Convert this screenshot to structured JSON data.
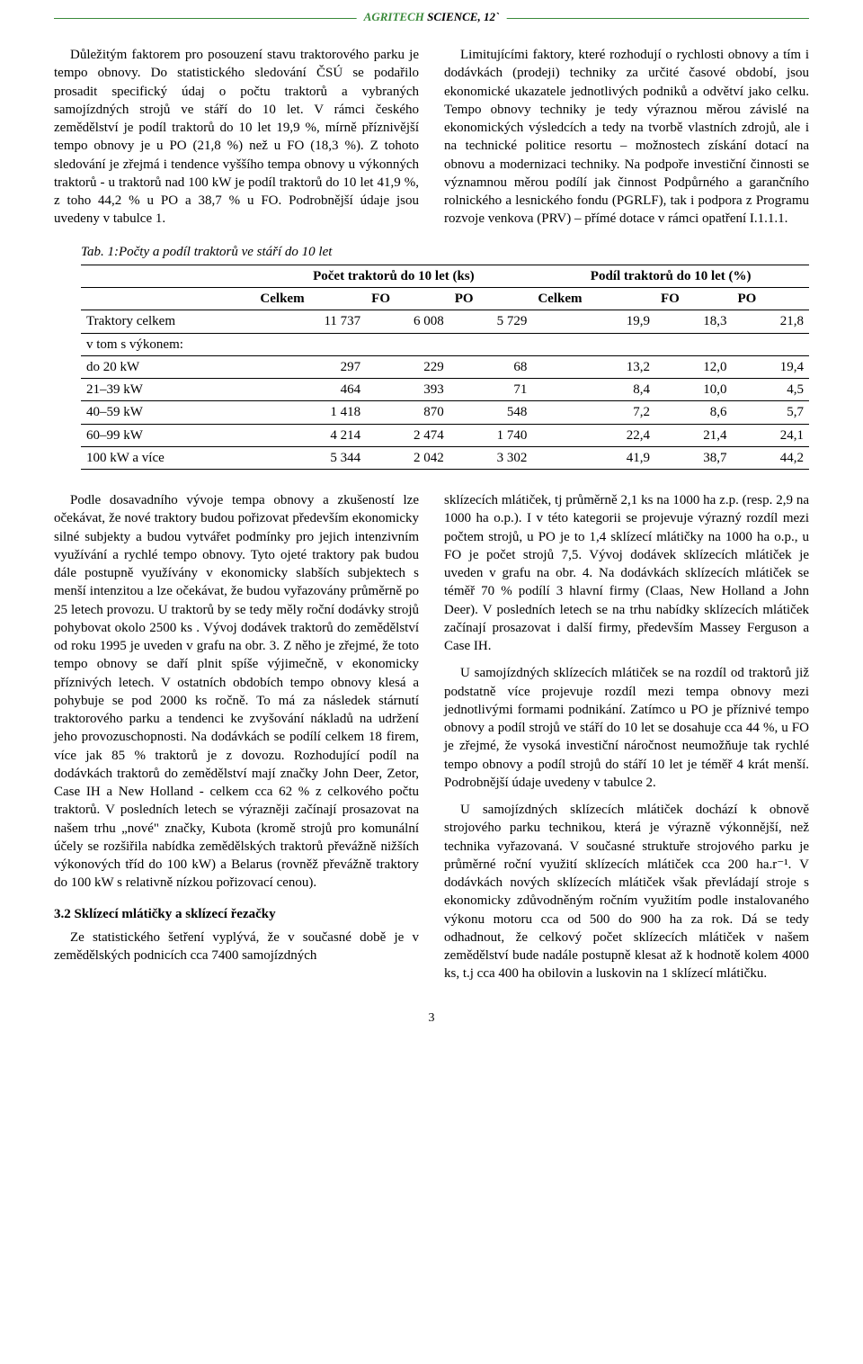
{
  "header": {
    "brand": "AGRITECH",
    "rest": " SCIENCE, 12`"
  },
  "top": {
    "left": "Důležitým faktorem pro posouzení stavu traktorového parku je tempo obnovy. Do statistického sledování ČSÚ se podařilo prosadit specifický údaj o počtu traktorů a vybraných samojízdných strojů ve stáří do 10 let. V rámci českého zemědělství je podíl traktorů do 10 let 19,9 %, mírně příznivější tempo obnovy je u PO (21,8 %) než u FO (18,3 %). Z tohoto sledování je zřejmá i tendence vyššího tempa obnovy u výkonných traktorů - u traktorů nad 100 kW je podíl traktorů do 10 let 41,9 %, z toho 44,2 % u PO a 38,7 % u FO. Podrobnější údaje jsou uvedeny v tabulce 1.",
    "right": "Limitujícími faktory, které rozhodují o rychlosti obnovy a tím i dodávkách (prodeji) techniky za určité časové období, jsou ekonomické ukazatele jednotlivých podniků a odvětví jako celku. Tempo obnovy techniky je tedy výraznou měrou závislé na ekonomických výsledcích a tedy na tvorbě vlastních zdrojů, ale i na technické politice resortu – možnostech získání dotací na obnovu a modernizaci techniky. Na podpoře investiční činnosti se významnou měrou podílí jak činnost Podpůrného a garančního rolnického a lesnického fondu (PGRLF), tak i podpora z Programu rozvoje venkova (PRV) – přímé dotace v rámci opatření I.1.1.1."
  },
  "table": {
    "caption": "Tab. 1:Počty a podíl traktorů ve stáří do 10 let",
    "group1": "Počet traktorů do 10 let (ks)",
    "group2": "Podíl traktorů do 10 let (%)",
    "cols": [
      "",
      "Celkem",
      "FO",
      "PO",
      "Celkem",
      "FO",
      "PO"
    ],
    "rows": [
      [
        "Traktory celkem",
        "11 737",
        "6 008",
        "5 729",
        "19,9",
        "18,3",
        "21,8"
      ],
      [
        "v tom s výkonem:",
        "",
        "",
        "",
        "",
        "",
        ""
      ],
      [
        "do 20 kW",
        "297",
        "229",
        "68",
        "13,2",
        "12,0",
        "19,4"
      ],
      [
        "21–39 kW",
        "464",
        "393",
        "71",
        "8,4",
        "10,0",
        "4,5"
      ],
      [
        "40–59 kW",
        "1 418",
        "870",
        "548",
        "7,2",
        "8,6",
        "5,7"
      ],
      [
        "60–99 kW",
        "4 214",
        "2 474",
        "1 740",
        "22,4",
        "21,4",
        "24,1"
      ],
      [
        "100 kW a více",
        "5 344",
        "2 042",
        "3 302",
        "41,9",
        "38,7",
        "44,2"
      ]
    ]
  },
  "bottom": {
    "left1": "Podle dosavadního vývoje tempa obnovy a zkušeností lze očekávat, že nové traktory budou pořizovat především ekonomicky silné subjekty a budou vytvářet podmínky pro jejich intenzivním využívání a rychlé tempo obnovy. Tyto ojeté traktory pak budou dále postupně využívány v ekonomicky slabších subjektech s menší intenzitou a lze očekávat, že budou vyřazovány průměrně po 25 letech provozu. U traktorů by se tedy měly roční dodávky strojů pohybovat okolo 2500 ks . Vývoj dodávek traktorů do zemědělství od roku 1995 je uveden v grafu na obr. 3. Z něho je zřejmé, že toto tempo obnovy se daří plnit spíše výjimečně, v ekonomicky příznivých letech. V ostatních obdobích tempo obnovy klesá a pohybuje se pod 2000 ks ročně. To má za následek stárnutí traktorového parku a tendenci ke zvyšování nákladů na udržení jeho provozuschopnosti. Na dodávkách se podílí celkem 18 firem, více jak 85 % traktorů je z dovozu. Rozhodující podíl na dodávkách traktorů do zemědělství mají značky John Deer, Zetor, Case IH a New Holland - celkem cca 62 % z celkového počtu traktorů. V posledních letech se výrazněji začínají prosazovat na našem trhu „nové\" značky, Kubota (kromě strojů pro komunální účely se rozšiřila nabídka zemědělských traktorů převážně nižších výkonových tříd do 100 kW) a Belarus (rovněž převážně traktory do 100 kW s relativně nízkou pořizovací cenou).",
    "section_heading": "3.2 Sklízecí mlátičky a sklízecí řezačky",
    "left2": "Ze statistického šetření vyplývá, že v současné době je v zemědělských podnicích cca 7400 samojízdných",
    "right1": "sklízecích mlátiček, tj průměrně 2,1 ks na 1000 ha z.p. (resp. 2,9 na 1000 ha o.p.). I v této kategorii se projevuje výrazný rozdíl mezi počtem strojů, u PO je to 1,4 sklízecí mlátičky na 1000 ha o.p., u FO je počet strojů 7,5. Vývoj dodávek sklízecích mlátiček je uveden v grafu na obr. 4. Na dodávkách sklízecích mlátiček se téměř 70 % podílí 3 hlavní firmy (Claas, New Holland a John Deer). V posledních letech se na trhu nabídky sklízecích mlátiček začínají prosazovat i další firmy, především Massey Ferguson a Case IH.",
    "right2": "U samojízdných sklízecích mlátiček se na rozdíl od traktorů již podstatně více projevuje rozdíl mezi tempa obnovy mezi jednotlivými formami podnikání. Zatímco u PO je příznivé tempo obnovy a podíl strojů ve stáří do 10 let se dosahuje cca 44 %, u FO je zřejmé, že vysoká investiční náročnost neumožňuje tak rychlé tempo obnovy a podíl strojů do stáří 10 let je téměř 4 krát menší. Podrobnější údaje uvedeny v tabulce 2.",
    "right3": "U samojízdných sklízecích mlátiček dochází k obnově strojového parku technikou, která je výrazně výkonnější, než technika vyřazovaná. V současné struktuře strojového parku je průměrné roční využití sklízecích mlátiček cca 200 ha.r⁻¹. V dodávkách nových sklízecích mlátiček však převládají stroje s ekonomicky zdůvodněným ročním využitím podle instalovaného výkonu motoru cca od 500 do 900 ha za rok. Dá se tedy odhadnout, že celkový počet sklízecích mlátiček v našem zemědělství bude nadále postupně klesat až k hodnotě kolem 4000 ks, t.j cca 400 ha obilovin a luskovin na 1 sklízecí mlátičku."
  },
  "page": "3"
}
